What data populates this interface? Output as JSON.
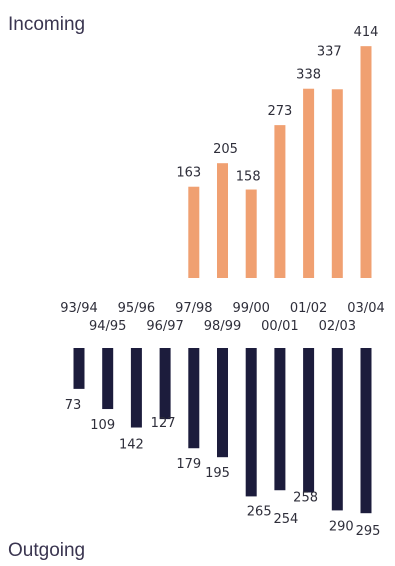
{
  "titles": {
    "top": "Incoming",
    "bottom": "Outgoing"
  },
  "colors": {
    "incoming": "#f0a071",
    "outgoing": "#1c1c3c",
    "text": "#2e2e3a"
  },
  "chart_data": {
    "type": "bar",
    "categories": [
      "93/94",
      "94/95",
      "95/96",
      "96/97",
      "97/98",
      "98/99",
      "99/00",
      "00/01",
      "01/02",
      "02/03",
      "03/04"
    ],
    "series": [
      {
        "name": "Incoming",
        "values": [
          null,
          null,
          null,
          null,
          163,
          205,
          158,
          273,
          338,
          337,
          414
        ]
      },
      {
        "name": "Outgoing",
        "values": [
          73,
          109,
          142,
          127,
          179,
          195,
          265,
          254,
          258,
          290,
          295
        ]
      }
    ],
    "title": "",
    "xlabel": "",
    "ylabel": "",
    "ylim": [
      0,
      420
    ],
    "grid": false,
    "legend": "none"
  }
}
